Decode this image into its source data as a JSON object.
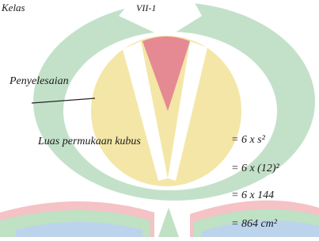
{
  "notes": {
    "class_label": "Kelas",
    "class_name": "VII-1",
    "heading": "Penyelesaian",
    "formula": {
      "label": "Luas permukaan kubus",
      "steps": [
        "= 6 x s²",
        "= 6 x (12)²",
        "= 6 x 144",
        "= 864 cm²"
      ]
    }
  }
}
